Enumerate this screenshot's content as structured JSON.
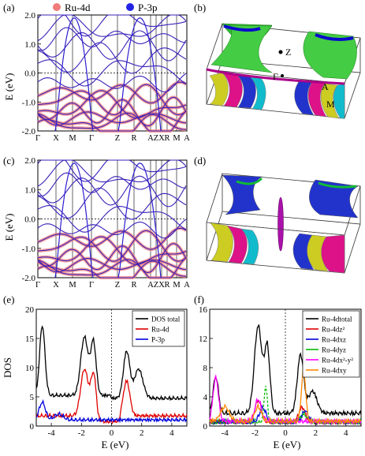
{
  "legend_top": {
    "ru": {
      "label": "Ru-4d",
      "color": "#f07b7b"
    },
    "p": {
      "label": "P-3p",
      "color": "#2323e6"
    }
  },
  "panels": {
    "a": "(a)",
    "b": "(b)",
    "c": "(c)",
    "d": "(d)",
    "e": "(e)",
    "f": "(f)"
  },
  "band": {
    "ylabel": "E (eV)",
    "yticks": [
      "2.0",
      "1.0",
      "0.0",
      "-1.0",
      "-2.0"
    ],
    "kpoints": [
      "Γ",
      "X",
      "M",
      "Γ",
      "Z",
      "R",
      "A",
      "Z",
      "X",
      "R",
      "M",
      "A"
    ]
  },
  "fs": {
    "z": "Z",
    "gamma": "Γ",
    "a": "A",
    "m": "M"
  },
  "dos": {
    "ylabel": "DOS",
    "xlabel": "E (eV)",
    "e_yticks": [
      "0",
      "5",
      "10",
      "15",
      "20"
    ],
    "f_yticks": [
      "0",
      "4",
      "8",
      "12",
      "16"
    ],
    "xticks": [
      "-4",
      "-2",
      "0",
      "2",
      "4"
    ],
    "e_legend": [
      {
        "label": "DOS total",
        "color": "#000000"
      },
      {
        "label": "Ru-4d",
        "color": "#e00000"
      },
      {
        "label": "P-3p",
        "color": "#0000dd"
      }
    ],
    "f_legend": [
      {
        "label": "Ru-4dtotal",
        "color": "#000000"
      },
      {
        "label": "Ru-4dz²",
        "color": "#e00000"
      },
      {
        "label": "Ru-4dxz",
        "color": "#0000dd"
      },
      {
        "label": "Ru-4dyz",
        "color": "#00bb00"
      },
      {
        "label": "Ru-4dx²-y²",
        "color": "#ff00ff"
      },
      {
        "label": "Ru-4dxy",
        "color": "#ff8800"
      }
    ]
  },
  "chart_data": [
    {
      "type": "line",
      "panel": "a",
      "ylabel": "E (eV)",
      "ylim": [
        -2.0,
        2.0
      ]
    },
    {
      "type": "line",
      "panel": "c",
      "ylabel": "E (eV)",
      "ylim": [
        -2.0,
        2.0
      ]
    },
    {
      "type": "line",
      "panel": "e",
      "xlabel": "E (eV)",
      "ylabel": "DOS",
      "xlim": [
        -5,
        5
      ],
      "ylim": [
        0,
        20
      ],
      "series": [
        {
          "name": "DOS total"
        },
        {
          "name": "Ru-4d"
        },
        {
          "name": "P-3p"
        }
      ]
    },
    {
      "type": "line",
      "panel": "f",
      "xlabel": "E (eV)",
      "xlim": [
        -5,
        5
      ],
      "ylim": [
        0,
        16
      ],
      "series": [
        {
          "name": "Ru-4dtotal"
        },
        {
          "name": "Ru-4dz²"
        },
        {
          "name": "Ru-4dxz"
        },
        {
          "name": "Ru-4dyz"
        },
        {
          "name": "Ru-4dx²-y²"
        },
        {
          "name": "Ru-4dxy"
        }
      ]
    }
  ]
}
